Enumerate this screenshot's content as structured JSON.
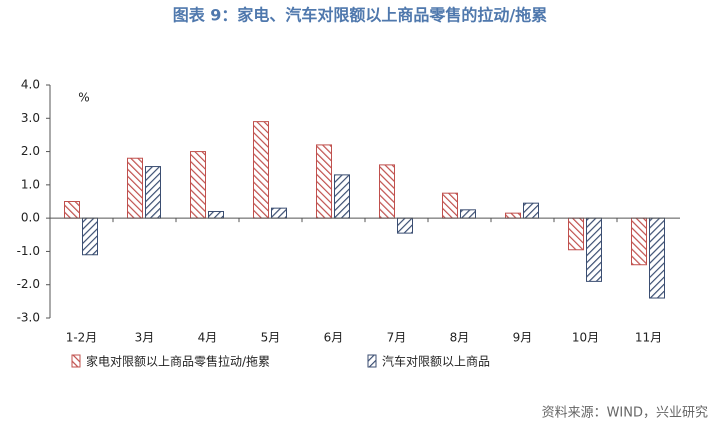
{
  "chart_data": {
    "type": "bar",
    "title": "图表 9：家电、汽车对限额以上商品零售的拉动/拖累",
    "unit": "%",
    "source": "资料来源：WIND，兴业研究",
    "categories": [
      "1-2月",
      "3月",
      "4月",
      "5月",
      "6月",
      "7月",
      "8月",
      "9月",
      "10月",
      "11月"
    ],
    "series": [
      {
        "name": "家电对限额以上商品零售拉动/拖累",
        "color": "#c0504d",
        "values": [
          0.5,
          1.8,
          2.0,
          2.9,
          2.2,
          1.6,
          0.75,
          0.15,
          -0.95,
          -1.4
        ]
      },
      {
        "name": "汽车对限额以上商品",
        "color": "#3b4e72",
        "values": [
          -1.1,
          1.55,
          0.2,
          0.3,
          1.3,
          -0.45,
          0.25,
          0.45,
          -1.9,
          -2.4
        ]
      }
    ],
    "ylim": [
      -3,
      4
    ],
    "yticks": [
      {
        "value": -3,
        "label": "-3.0"
      },
      {
        "value": -2,
        "label": "-2.0"
      },
      {
        "value": -1,
        "label": "-1.0"
      },
      {
        "value": 0,
        "label": "0.0"
      },
      {
        "value": 1,
        "label": "1.0"
      },
      {
        "value": 2,
        "label": "2.0"
      },
      {
        "value": 3,
        "label": "3.0"
      },
      {
        "value": 4,
        "label": "4.0"
      }
    ],
    "grid": false
  }
}
